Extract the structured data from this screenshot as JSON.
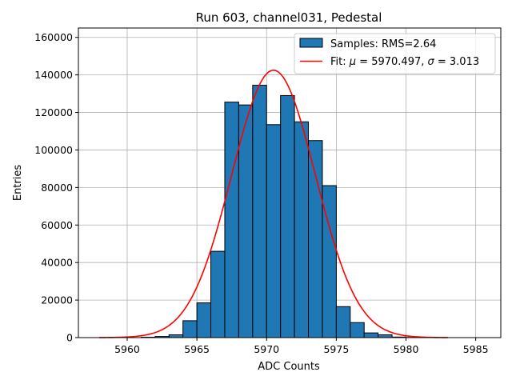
{
  "chart_data": {
    "type": "bar",
    "title": "Run 603, channel031, Pedestal",
    "xlabel": "ADC Counts",
    "ylabel": "Entries",
    "xlim": [
      5956.5,
      5986.8
    ],
    "ylim": [
      0,
      165000
    ],
    "xticks": [
      5960,
      5965,
      5970,
      5975,
      5980,
      5985
    ],
    "yticks": [
      0,
      20000,
      40000,
      60000,
      80000,
      100000,
      120000,
      140000,
      160000
    ],
    "grid": true,
    "legend_position": "top-right",
    "bin_width": 1,
    "series": [
      {
        "name": "Samples: RMS=2.64",
        "kind": "histogram",
        "color": "#1f77b4",
        "edge_color": "#000000",
        "bin_left": [
          5961,
          5962,
          5963,
          5964,
          5965,
          5966,
          5967,
          5968,
          5969,
          5970,
          5971,
          5972,
          5973,
          5974,
          5975,
          5976,
          5977,
          5978,
          5979,
          5980
        ],
        "values": [
          200,
          600,
          1500,
          9000,
          18500,
          46000,
          125500,
          124000,
          134500,
          113500,
          129000,
          115000,
          105000,
          81000,
          16500,
          8000,
          2500,
          1500,
          300,
          100
        ]
      },
      {
        "name_prefix": "Fit: ",
        "name_mu": "μ",
        "name_mid": " = 5970.497, ",
        "name_sigma": "σ",
        "name_suffix": " = 3.013",
        "kind": "gaussian-fit",
        "color": "#ff0000",
        "mu": 5970.497,
        "sigma": 3.013,
        "amplitude": 142500,
        "x_range": [
          5958,
          5983
        ]
      }
    ]
  }
}
